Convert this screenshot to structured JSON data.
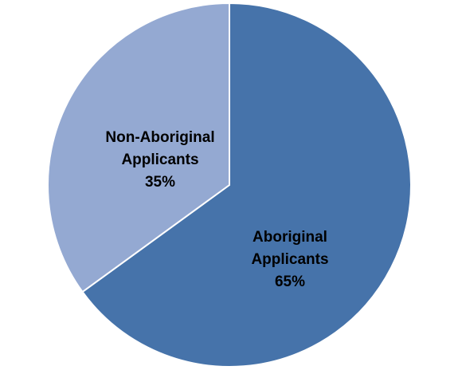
{
  "chart_data": {
    "type": "pie",
    "title": "",
    "slices": [
      {
        "label": "Aboriginal Applicants",
        "label_lines": [
          "Aboriginal",
          "Applicants",
          "65%"
        ],
        "value": 65,
        "color": "#4673AA"
      },
      {
        "label": "Non-Aboriginal Applicants",
        "label_lines": [
          "Non-Aboriginal",
          "Applicants",
          "35%"
        ],
        "value": 35,
        "color": "#94A9D2"
      }
    ],
    "start_angle": "12 o'clock, clockwise",
    "legend": "none (labels inside slices)"
  }
}
